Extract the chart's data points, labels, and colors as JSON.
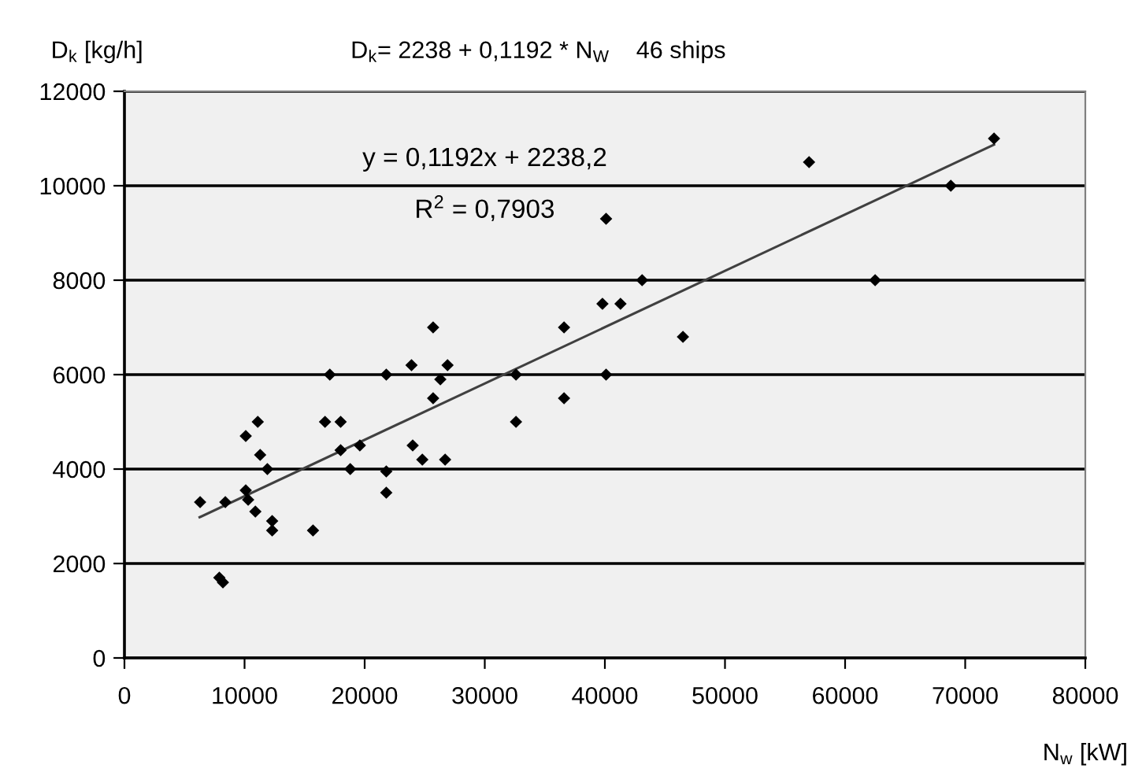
{
  "chart_data": {
    "type": "scatter",
    "title": "D$_{k}$= 2238 + 0,1192 * N$_{W}$    46 ships",
    "xlabel": "N$_{w}$ [kW]",
    "ylabel": "D$_{k}$ [kg/h]",
    "xlim": [
      0,
      80000
    ],
    "xticks": [
      0,
      10000,
      20000,
      30000,
      40000,
      50000,
      60000,
      70000,
      80000
    ],
    "ylim": [
      0,
      12000
    ],
    "yticks": [
      0,
      2000,
      4000,
      6000,
      8000,
      10000,
      12000
    ],
    "grid": "y",
    "marker": "diamond",
    "legend": false,
    "annotations": [
      "y = 0,1192x + 2238,2",
      "R$^{2}$ = 0,7903"
    ],
    "series": [
      {
        "color": "#000000",
        "x": [
          6300,
          7900,
          8200,
          8400,
          10100,
          10100,
          11100,
          10300,
          10900,
          11300,
          11900,
          12300,
          12300,
          15700,
          17100,
          16700,
          18000,
          18000,
          19600,
          18800,
          21800,
          21800,
          21800,
          23900,
          24000,
          24800,
          25700,
          26300,
          26900,
          25700,
          26700,
          32600,
          32600,
          36600,
          36600,
          39800,
          41300,
          40100,
          40100,
          43100,
          46500,
          57000,
          62500,
          68800,
          72400
        ],
        "values": [
          3300,
          1700,
          1600,
          3300,
          3550,
          4700,
          5000,
          3350,
          3100,
          4300,
          4000,
          2900,
          2700,
          2700,
          6000,
          5000,
          5000,
          4400,
          4500,
          4000,
          6000,
          3950,
          3500,
          6200,
          4500,
          4200,
          7000,
          5900,
          6200,
          5500,
          4200,
          6000,
          5000,
          7000,
          5500,
          7500,
          7500,
          9300,
          6000,
          8000,
          6800,
          10500,
          8000,
          10000,
          11000
        ]
      },
      {
        "type": "line",
        "color": "#404040",
        "marker": "none",
        "x": [
          6260,
          72400
        ],
        "values": [
          2980,
          10870
        ]
      }
    ]
  }
}
